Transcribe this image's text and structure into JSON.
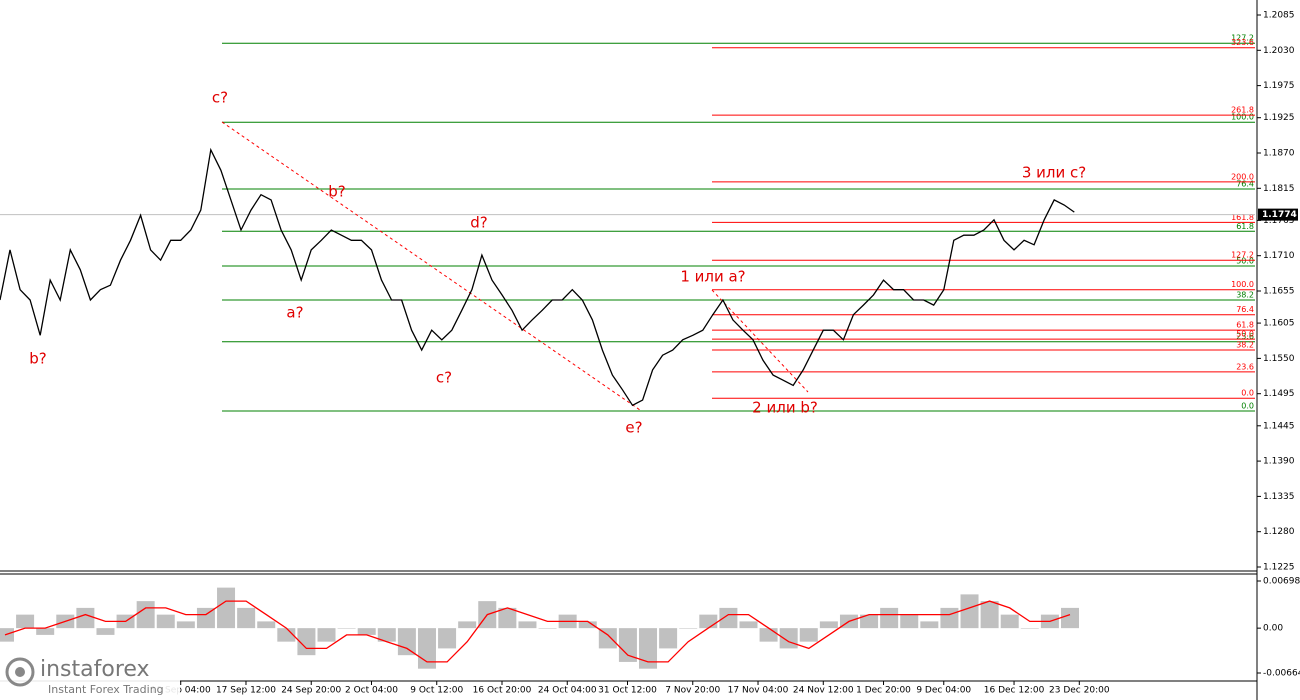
{
  "chart_data": {
    "type": "line",
    "color": "#000000",
    "values": [
      1.1641,
      1.1719,
      1.1657,
      1.1641,
      1.1586,
      1.1672,
      1.1641,
      1.1719,
      1.1688,
      1.1641,
      1.1657,
      1.1664,
      1.1703,
      1.1734,
      1.1773,
      1.1719,
      1.1703,
      1.1734,
      1.1734,
      1.175,
      1.1781,
      1.1875,
      1.1843,
      1.1797,
      1.175,
      1.1781,
      1.1805,
      1.1797,
      1.175,
      1.1719,
      1.1672,
      1.1719,
      1.1734,
      1.175,
      1.1742,
      1.1734,
      1.1734,
      1.1719,
      1.1672,
      1.1641,
      1.1641,
      1.1594,
      1.1563,
      1.1594,
      1.1579,
      1.1594,
      1.1625,
      1.1657,
      1.1711,
      1.1672,
      1.1649,
      1.1625,
      1.1594,
      1.161,
      1.1625,
      1.1641,
      1.1641,
      1.1657,
      1.1641,
      1.161,
      1.1563,
      1.1524,
      1.1501,
      1.1477,
      1.1485,
      1.1532,
      1.1555,
      1.1563,
      1.1579,
      1.1586,
      1.1594,
      1.1618,
      1.1641,
      1.161,
      1.1594,
      1.1579,
      1.1547,
      1.1524,
      1.1516,
      1.1508,
      1.1532,
      1.1563,
      1.1594,
      1.1594,
      1.1579,
      1.1618,
      1.1633,
      1.1649,
      1.1672,
      1.1657,
      1.1657,
      1.1641,
      1.1641,
      1.1633,
      1.1657,
      1.1734,
      1.1742,
      1.1742,
      1.175,
      1.1766,
      1.1734,
      1.1719,
      1.1734,
      1.1727,
      1.1766,
      1.1797,
      1.1789,
      1.1778
    ],
    "xlim": [
      0,
      125
    ],
    "xticks": [
      {
        "value": 18,
        "label": "10 Sep 04:00"
      },
      {
        "value": 24.5,
        "label": "17 Sep 12:00"
      },
      {
        "value": 31,
        "label": "24 Sep 20:00"
      },
      {
        "value": 37,
        "label": "2 Oct 04:00"
      },
      {
        "value": 43.5,
        "label": "9 Oct 12:00"
      },
      {
        "value": 50,
        "label": "16 Oct 20:00"
      },
      {
        "value": 56.5,
        "label": "24 Oct 04:00"
      },
      {
        "value": 62.5,
        "label": "31 Oct 12:00"
      },
      {
        "value": 69,
        "label": "7 Nov 20:00"
      },
      {
        "value": 75.5,
        "label": "17 Nov 04:00"
      },
      {
        "value": 82,
        "label": "24 Nov 12:00"
      },
      {
        "value": 88,
        "label": "1 Dec 20:00"
      },
      {
        "value": 94,
        "label": "9 Dec 04:00"
      },
      {
        "value": 101,
        "label": "16 Dec 12:00"
      },
      {
        "value": 107.5,
        "label": "23 Dec 20:00"
      }
    ],
    "ylim": [
      1.1225,
      1.2085
    ],
    "yticks": [
      1.2085,
      {
        "value": 1.203,
        "label": "1.2030"
      },
      1.1975,
      1.1925,
      {
        "value": 1.187,
        "label": "1.1870"
      },
      1.1815,
      1.1765,
      {
        "value": 1.171,
        "label": "1.1710"
      },
      1.1655,
      1.1605,
      {
        "value": 1.155,
        "label": "1.1550"
      },
      1.1495,
      1.1445,
      {
        "value": 1.139,
        "label": "1.1390"
      },
      1.1335,
      {
        "value": 1.128,
        "label": "1.1280"
      },
      1.1225
    ],
    "current_price": 1.1774,
    "fib_levels": [
      {
        "label": "127.2",
        "price": 1.2041,
        "color": "#008000",
        "start": "wave"
      },
      {
        "label": "100.0",
        "price": 1.1918,
        "color": "#008000",
        "start": "wave"
      },
      {
        "label": "76.4",
        "price": 1.1814,
        "color": "#008000",
        "start": "wave"
      },
      {
        "label": "61.8",
        "price": 1.1748,
        "color": "#008000",
        "start": "wave"
      },
      {
        "label": "50.0",
        "price": 1.1694,
        "color": "#008000",
        "start": "wave"
      },
      {
        "label": "38.2",
        "price": 1.1641,
        "color": "#008000",
        "start": "wave"
      },
      {
        "label": "23.6",
        "price": 1.1576,
        "color": "#008000",
        "start": "wave"
      },
      {
        "label": "0.0",
        "price": 1.1468,
        "color": "#008000",
        "start": "wave"
      },
      {
        "label": "323.6",
        "price": 1.2034,
        "color": "#ff0000",
        "start": "sub"
      },
      {
        "label": "261.8",
        "price": 1.1929,
        "color": "#ff0000",
        "start": "sub"
      },
      {
        "label": "200.0",
        "price": 1.1825,
        "color": "#ff0000",
        "start": "sub"
      },
      {
        "label": "161.8",
        "price": 1.1762,
        "color": "#ff0000",
        "start": "sub"
      },
      {
        "label": "127.2",
        "price": 1.1703,
        "color": "#ff0000",
        "start": "sub"
      },
      {
        "label": "100.0",
        "price": 1.1657,
        "color": "#ff0000",
        "start": "sub"
      },
      {
        "label": "76.4",
        "price": 1.1618,
        "color": "#ff0000",
        "start": "sub"
      },
      {
        "label": "61.8",
        "price": 1.1594,
        "color": "#ff0000",
        "start": "sub"
      },
      {
        "label": "50.0",
        "price": 1.158,
        "color": "#ff0000",
        "start": "sub"
      },
      {
        "label": "38.2",
        "price": 1.1563,
        "color": "#ff0000",
        "start": "sub"
      },
      {
        "label": "23.6",
        "price": 1.1529,
        "color": "#ff0000",
        "start": "sub"
      },
      {
        "label": "0.0",
        "price": 1.1488,
        "color": "#ff0000",
        "start": "sub"
      }
    ],
    "annotations": [
      "c?",
      "b?",
      "d?",
      "a?",
      "b?",
      "c?",
      "e?",
      "1 или а?",
      "2 или b?",
      "3 или с?"
    ],
    "indicator": {
      "ylim": [
        -0.00664,
        0.00698
      ],
      "yticks": [
        0.00698,
        {
          "value": 0,
          "label": "0.00"
        },
        -0.00664
      ],
      "color": "#c0c0c0",
      "signal_color": "#ff0000",
      "values": [
        -0.002,
        0.002,
        -0.001,
        0.002,
        0.003,
        -0.001,
        0.002,
        0.004,
        0.002,
        0.001,
        0.003,
        0.006,
        0.003,
        0.001,
        -0.002,
        -0.004,
        -0.002,
        0,
        -0.001,
        -0.002,
        -0.004,
        -0.006,
        -0.003,
        0.001,
        0.004,
        0.003,
        0.001,
        0,
        0.002,
        0.001,
        -0.003,
        -0.005,
        -0.006,
        -0.003,
        0,
        0.002,
        0.003,
        0.001,
        -0.002,
        -0.003,
        -0.002,
        0.001,
        0.002,
        0.002,
        0.003,
        0.002,
        0.001,
        0.003,
        0.005,
        0.004,
        0.002,
        0,
        0.002,
        0.003
      ],
      "signal": [
        -0.001,
        0,
        0,
        0.001,
        0.002,
        0.001,
        0.001,
        0.003,
        0.003,
        0.002,
        0.002,
        0.004,
        0.004,
        0.002,
        0,
        -0.003,
        -0.003,
        -0.001,
        -0.001,
        -0.002,
        -0.003,
        -0.005,
        -0.005,
        -0.002,
        0.002,
        0.003,
        0.002,
        0.001,
        0.001,
        0.001,
        -0.001,
        -0.004,
        -0.005,
        -0.005,
        -0.002,
        0,
        0.002,
        0.002,
        0,
        -0.002,
        -0.003,
        -0.001,
        0.001,
        0.002,
        0.002,
        0.002,
        0.002,
        0.002,
        0.003,
        0.004,
        0.003,
        0.001,
        0.001,
        0.002
      ]
    },
    "watermark": {
      "brand": "instaforex",
      "tagline": "Instant Forex Trading"
    }
  }
}
